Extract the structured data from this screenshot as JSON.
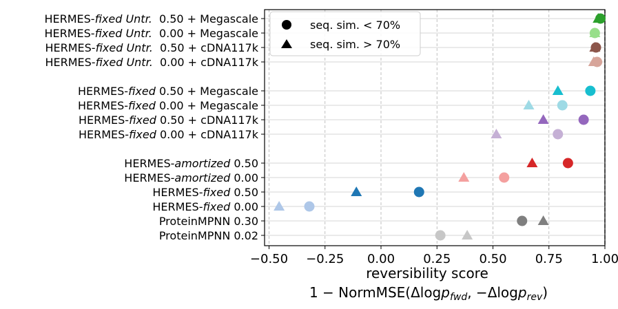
{
  "chart_data": {
    "type": "scatter",
    "xlabel_line1": "reversibility score",
    "xlabel_line2": "1 − NormMSE(Δlogp_fwd, −Δlogp_rev)",
    "xlim": [
      -0.52,
      1.0
    ],
    "xticks": [
      "−0.50",
      "−0.25",
      "0.00",
      "0.25",
      "0.50",
      "0.75",
      "1.00"
    ],
    "xtick_values": [
      -0.5,
      -0.25,
      0.0,
      0.25,
      0.5,
      0.75,
      1.0
    ],
    "reference_line_x": 1.0,
    "grid": "x dashed, y solid",
    "legend": {
      "placement": "top-left",
      "entries": [
        {
          "label": "seq. sim. < 70%",
          "marker": "circle"
        },
        {
          "label": "seq. sim. > 70%",
          "marker": "triangle"
        }
      ]
    },
    "rows": [
      {
        "label_pre": "HERMES-",
        "label_it": "fixed Untr.",
        "label_post": "  0.50 + Megascale",
        "color": "#2ca02c",
        "circle": 0.98,
        "triangle": 0.97
      },
      {
        "label_pre": "HERMES-",
        "label_it": "fixed Untr.",
        "label_post": "  0.00 + Megascale",
        "color": "#98df8a",
        "circle": 0.955,
        "triangle": 0.955
      },
      {
        "label_pre": "HERMES-",
        "label_it": "fixed Untr.",
        "label_post": "  0.50 + cDNA117k",
        "color": "#8c564b",
        "circle": 0.96,
        "triangle": 0.955
      },
      {
        "label_pre": "HERMES-",
        "label_it": "fixed Untr.",
        "label_post": "  0.00 + cDNA117k",
        "color": "#d7a59a",
        "circle": 0.965,
        "triangle": 0.95
      },
      {
        "label_pre": "HERMES-",
        "label_it": "fixed",
        "label_post": " 0.50 + Megascale",
        "color": "#17becf",
        "circle": 0.935,
        "triangle": 0.79
      },
      {
        "label_pre": "HERMES-",
        "label_it": "fixed",
        "label_post": " 0.00 + Megascale",
        "color": "#9edae5",
        "circle": 0.81,
        "triangle": 0.66
      },
      {
        "label_pre": "HERMES-",
        "label_it": "fixed",
        "label_post": " 0.50 + cDNA117k",
        "color": "#9467bd",
        "circle": 0.905,
        "triangle": 0.725
      },
      {
        "label_pre": "HERMES-",
        "label_it": "fixed",
        "label_post": " 0.00 + cDNA117k",
        "color": "#c5b0d5",
        "circle": 0.79,
        "triangle": 0.515
      },
      {
        "label_pre": "HERMES-",
        "label_it": "amortized",
        "label_post": " 0.50",
        "color": "#d62728",
        "circle": 0.835,
        "triangle": 0.675
      },
      {
        "label_pre": "HERMES-",
        "label_it": "amortized",
        "label_post": " 0.00",
        "color": "#f4a09f",
        "circle": 0.55,
        "triangle": 0.37
      },
      {
        "label_pre": "HERMES-",
        "label_it": "fixed",
        "label_post": " 0.50",
        "color": "#1f77b4",
        "circle": 0.17,
        "triangle": -0.11
      },
      {
        "label_pre": "HERMES-",
        "label_it": "fixed",
        "label_post": " 0.00",
        "color": "#aec7e8",
        "circle": -0.32,
        "triangle": -0.455
      },
      {
        "label_pre": "",
        "label_it": "",
        "label_post": "ProteinMPNN 0.30",
        "color": "#7f7f7f",
        "circle": 0.63,
        "triangle": 0.725
      },
      {
        "label_pre": "",
        "label_it": "",
        "label_post": "ProteinMPNN 0.02",
        "color": "#c7c7c7",
        "circle": 0.265,
        "triangle": 0.385
      }
    ]
  }
}
